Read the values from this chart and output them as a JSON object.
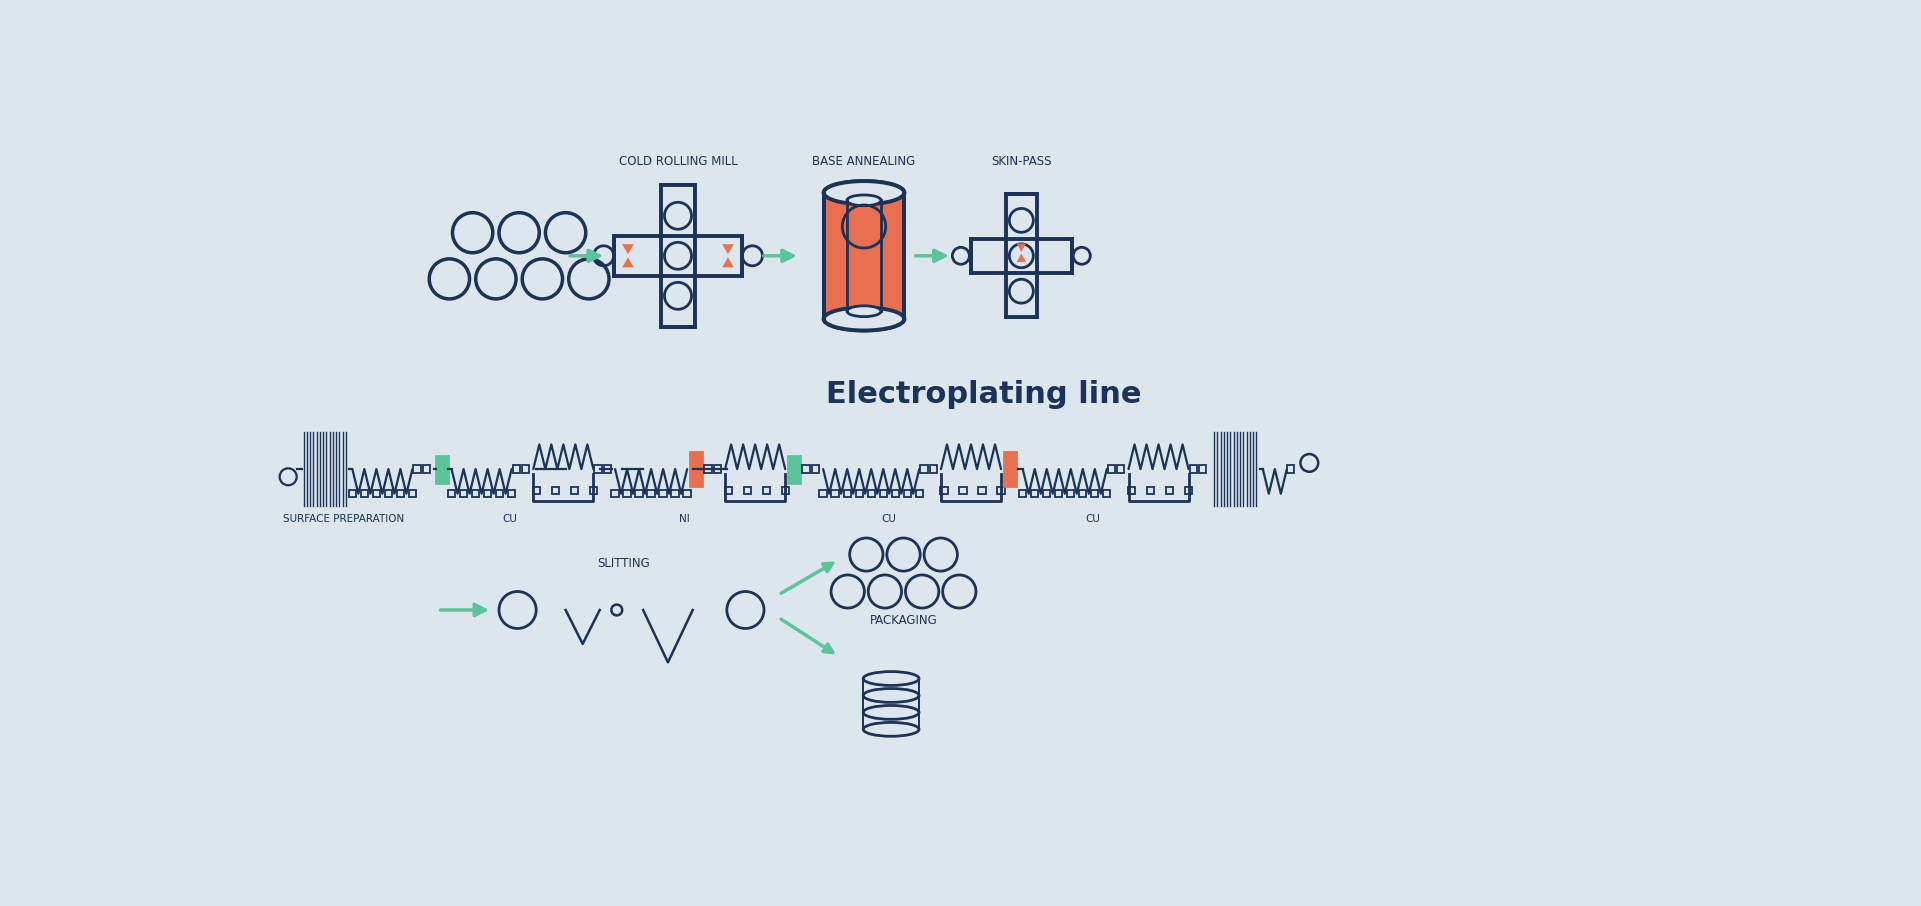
{
  "bg_color": "#dde5ed",
  "dark_blue": "#1b3358",
  "green": "#5cc49a",
  "orange": "#e87050",
  "title_electroplating": "Electroplating line",
  "label_cold_rolling": "COLD ROLLING MILL",
  "label_base_annealing": "BASE ANNEALING",
  "label_skin_pass": "SKIN-PASS",
  "label_surface_prep": "SURFACE PREPARATION",
  "label_cu1": "CU",
  "label_ni": "NI",
  "label_cu2": "CU",
  "label_cu3": "CU",
  "label_slitting": "SLITTING",
  "label_packaging": "PACKAGING",
  "figw": 19.21,
  "figh": 9.06
}
